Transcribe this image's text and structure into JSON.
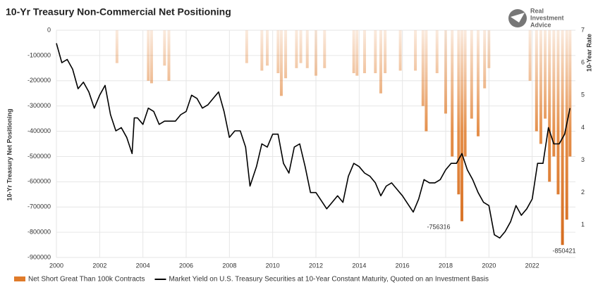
{
  "chart_data": {
    "type": "bar-line",
    "title": "10-Yr Treasury Non-Commercial Net Positioning",
    "logo": [
      "Real",
      "Investment",
      "Advice"
    ],
    "y_label": "10-Yr Treasury Net Positioning",
    "y2_label": "10-Year Rate",
    "annotations": [
      "-756316",
      "-850421"
    ],
    "xlim": [
      2000,
      2024
    ],
    "xticks": [
      2000,
      2002,
      2004,
      2006,
      2008,
      2010,
      2012,
      2014,
      2016,
      2018,
      2020,
      2022
    ],
    "ylim": [
      -900000,
      0
    ],
    "yticks": [
      0,
      -100000,
      -200000,
      -300000,
      -400000,
      -500000,
      -600000,
      -700000,
      -800000,
      -900000
    ],
    "y2lim": [
      0,
      7
    ],
    "y2ticks": [
      1,
      2,
      3,
      4,
      5,
      6,
      7
    ],
    "grid": true,
    "series": [
      {
        "name": "Net Short Great Than 100k Contracts",
        "color": "#e07b2a",
        "kind": "bar",
        "x": [
          2002.8,
          2004.25,
          2004.4,
          2005.0,
          2005.2,
          2008.8,
          2009.5,
          2009.75,
          2010.25,
          2010.4,
          2010.6,
          2011.1,
          2011.3,
          2011.6,
          2012.0,
          2012.4,
          2013.75,
          2013.9,
          2014.25,
          2014.75,
          2015.0,
          2015.2,
          2015.9,
          2016.6,
          2016.95,
          2017.1,
          2017.6,
          2018.0,
          2018.3,
          2018.6,
          2018.75,
          2018.9,
          2019.2,
          2019.5,
          2019.8,
          2020.0,
          2021.9,
          2022.2,
          2022.4,
          2022.6,
          2022.8,
          2023.0,
          2023.2,
          2023.4,
          2023.6,
          2023.75
        ],
        "values": [
          -130000,
          -200000,
          -210000,
          -140000,
          -200000,
          -130000,
          -160000,
          -140000,
          -170000,
          -260000,
          -190000,
          -150000,
          -130000,
          -150000,
          -180000,
          -150000,
          -170000,
          -180000,
          -170000,
          -170000,
          -250000,
          -170000,
          -160000,
          -160000,
          -300000,
          -400000,
          -170000,
          -330000,
          -500000,
          -650000,
          -756316,
          -500000,
          -350000,
          -420000,
          -230000,
          -150000,
          -200000,
          -400000,
          -450000,
          -350000,
          -600000,
          -500000,
          -650000,
          -850421,
          -750000,
          -500000
        ]
      },
      {
        "name": "Market Yield on U.S. Treasury Securities at 10-Year Constant Maturity, Quoted on an Investment Basis",
        "color": "#000000",
        "kind": "line",
        "axis": "y2",
        "x": [
          2000.0,
          2000.25,
          2000.5,
          2000.75,
          2001.0,
          2001.25,
          2001.5,
          2001.75,
          2002.0,
          2002.25,
          2002.5,
          2002.75,
          2003.0,
          2003.25,
          2003.5,
          2003.6,
          2003.75,
          2004.0,
          2004.25,
          2004.5,
          2004.75,
          2005.0,
          2005.25,
          2005.5,
          2005.75,
          2006.0,
          2006.25,
          2006.5,
          2006.75,
          2007.0,
          2007.25,
          2007.5,
          2007.75,
          2008.0,
          2008.25,
          2008.5,
          2008.75,
          2008.95,
          2009.25,
          2009.5,
          2009.75,
          2010.0,
          2010.25,
          2010.5,
          2010.75,
          2011.0,
          2011.25,
          2011.5,
          2011.75,
          2012.0,
          2012.5,
          2012.75,
          2013.0,
          2013.25,
          2013.5,
          2013.75,
          2014.0,
          2014.25,
          2014.5,
          2014.75,
          2015.0,
          2015.25,
          2015.5,
          2015.75,
          2016.0,
          2016.5,
          2016.75,
          2017.0,
          2017.25,
          2017.5,
          2017.75,
          2018.0,
          2018.25,
          2018.5,
          2018.75,
          2019.0,
          2019.25,
          2019.5,
          2019.75,
          2020.0,
          2020.25,
          2020.5,
          2020.75,
          2021.0,
          2021.25,
          2021.5,
          2021.75,
          2022.0,
          2022.25,
          2022.5,
          2022.75,
          2023.0,
          2023.25,
          2023.5,
          2023.75
        ],
        "values": [
          6.6,
          6.0,
          6.1,
          5.8,
          5.2,
          5.4,
          5.1,
          4.6,
          5.0,
          5.3,
          4.4,
          3.9,
          4.0,
          3.7,
          3.2,
          4.3,
          4.3,
          4.1,
          4.6,
          4.5,
          4.1,
          4.2,
          4.2,
          4.2,
          4.4,
          4.5,
          5.0,
          4.9,
          4.6,
          4.7,
          4.9,
          5.1,
          4.5,
          3.7,
          3.9,
          3.9,
          3.4,
          2.2,
          2.8,
          3.5,
          3.4,
          3.8,
          3.8,
          2.9,
          2.6,
          3.4,
          3.5,
          2.8,
          2.0,
          2.0,
          1.5,
          1.7,
          1.9,
          1.7,
          2.5,
          2.9,
          2.8,
          2.6,
          2.5,
          2.3,
          1.9,
          2.2,
          2.3,
          2.1,
          1.9,
          1.4,
          1.8,
          2.4,
          2.3,
          2.3,
          2.4,
          2.7,
          2.9,
          2.9,
          3.2,
          2.7,
          2.4,
          2.0,
          1.7,
          1.6,
          0.7,
          0.6,
          0.8,
          1.1,
          1.6,
          1.3,
          1.5,
          1.8,
          2.9,
          2.9,
          4.0,
          3.5,
          3.5,
          3.8,
          4.6
        ]
      }
    ]
  }
}
